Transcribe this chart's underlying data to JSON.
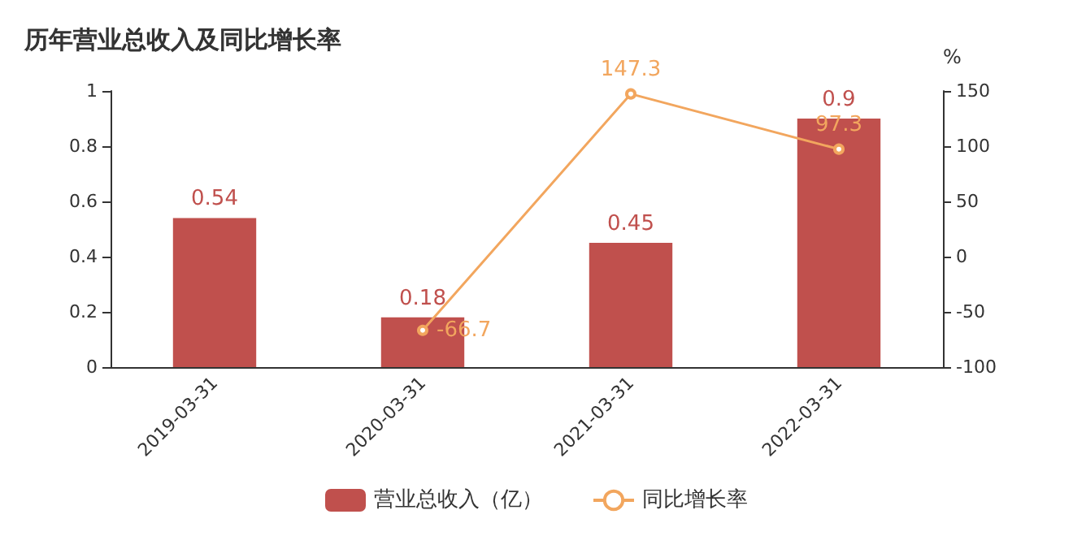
{
  "chart_data": {
    "type": "bar",
    "title": "历年营业总收入及同比增长率",
    "categories": [
      "2019-03-31",
      "2020-03-31",
      "2021-03-31",
      "2022-03-31"
    ],
    "series": [
      {
        "name": "营业总收入（亿）",
        "color": "#c0504d",
        "values": [
          0.54,
          0.18,
          0.45,
          0.9
        ]
      },
      {
        "name": "同比增长率",
        "type": "line",
        "axis": "y2",
        "color": "#f2a65e",
        "values": [
          null,
          -66.7,
          147.3,
          97.3
        ]
      }
    ],
    "ylim": [
      0,
      1
    ],
    "yticks": [
      0,
      0.2,
      0.4,
      0.6,
      0.8,
      1
    ],
    "y2label": "%",
    "y2lim": [
      -100,
      150
    ],
    "y2ticks": [
      -100,
      -50,
      0,
      50,
      100,
      150
    ],
    "data_labels": true,
    "legend": "bottom",
    "grid": false,
    "marker": "circle"
  }
}
